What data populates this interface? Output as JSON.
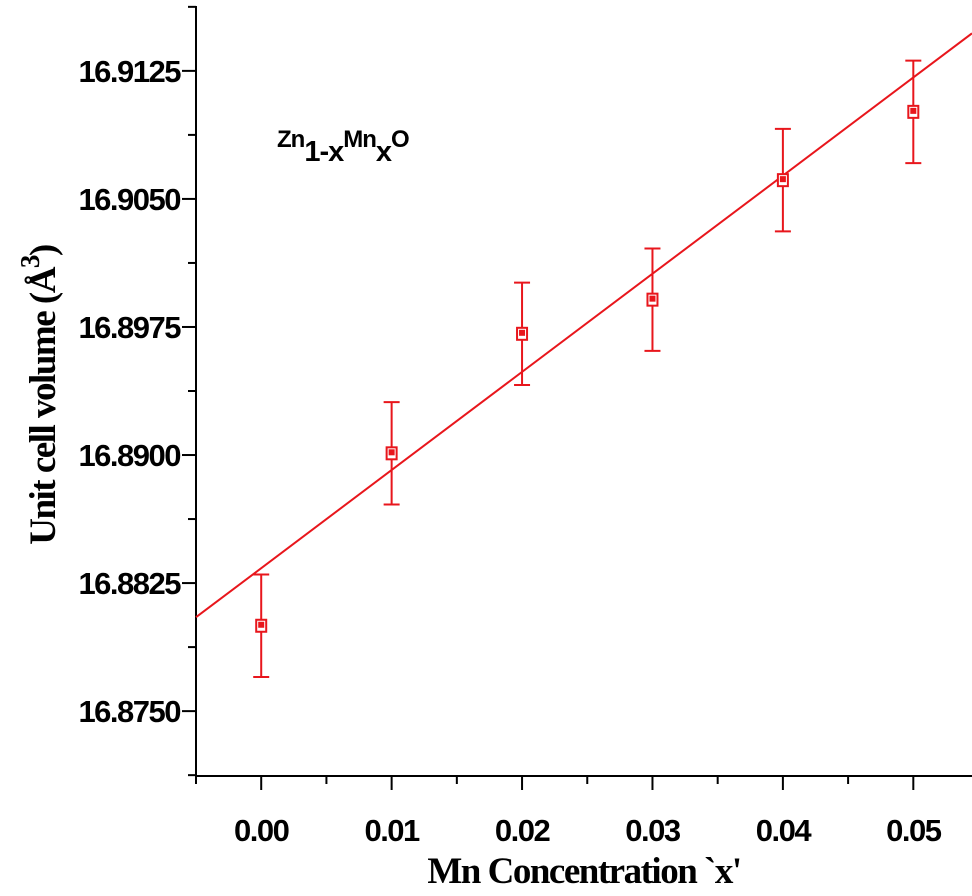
{
  "chart_data": {
    "type": "scatter",
    "title": "",
    "xlabel": "Mn Concentration `x'",
    "ylabel": "Unit cell volume (Å",
    "ylabel_sup": "3",
    "ylabel_close": ")",
    "xlim": [
      -0.005,
      0.0545
    ],
    "ylim": [
      16.8712,
      16.9163
    ],
    "x_ticks": [
      0.0,
      0.01,
      0.02,
      0.03,
      0.04,
      0.05
    ],
    "x_tick_labels": [
      "0.00",
      "0.01",
      "0.02",
      "0.03",
      "0.04",
      "0.05"
    ],
    "y_ticks": [
      16.875,
      16.8825,
      16.89,
      16.8975,
      16.905,
      16.9125
    ],
    "y_tick_labels": [
      "16.8750",
      "16.8825",
      "16.8900",
      "16.8975",
      "16.9050",
      "16.9125"
    ],
    "grid": false,
    "color": "#e8161c",
    "series": [
      {
        "type": "scatter-errorbar",
        "x": [
          0.0,
          0.01,
          0.02,
          0.03,
          0.04,
          0.05
        ],
        "y": [
          16.88,
          16.8901,
          16.8971,
          16.8991,
          16.9061,
          16.9101
        ],
        "yerr": [
          0.003,
          0.003,
          0.003,
          0.003,
          0.003,
          0.003
        ]
      },
      {
        "type": "line",
        "fit": "linear",
        "x": [
          -0.005,
          0.0545
        ],
        "y": [
          16.8805,
          16.9147
        ]
      }
    ],
    "annotation": {
      "base1": "Zn",
      "sub1": "1-x",
      "base2": "Mn",
      "sub2": "x",
      "base3": "O"
    }
  }
}
